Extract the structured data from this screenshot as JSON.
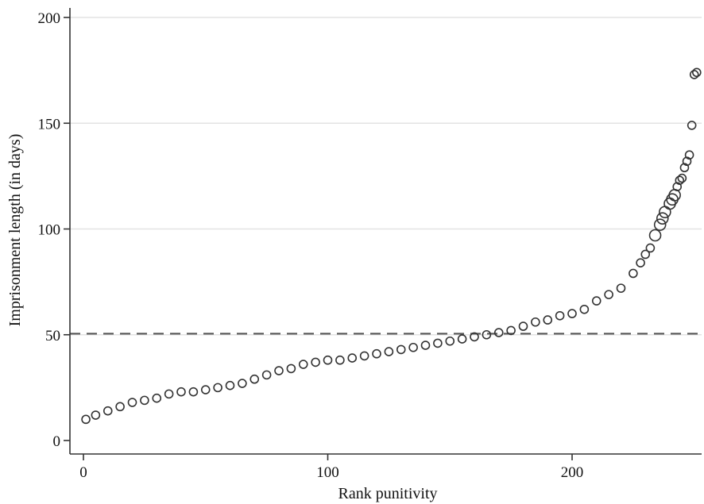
{
  "chart_data": {
    "type": "scatter",
    "title": "",
    "xlabel": "Rank punitivity",
    "ylabel": "Imprisonment length (in days)",
    "xlim": [
      0,
      250
    ],
    "ylim": [
      0,
      200
    ],
    "x_ticks": [
      0,
      100,
      200
    ],
    "y_ticks": [
      0,
      50,
      100,
      150,
      200
    ],
    "grid": "horizontal",
    "reference_line": {
      "y": 50.5,
      "style": "dashed",
      "color": "#555555"
    },
    "marker": "hollow-circle",
    "marker_color": "#333333",
    "series": [
      {
        "x": [
          1,
          5,
          10,
          15,
          20,
          25,
          30,
          35,
          40,
          45,
          50,
          55,
          60,
          65,
          70,
          75,
          80,
          85,
          90,
          95,
          100,
          105,
          110,
          115,
          120,
          125,
          130,
          135,
          140,
          145,
          150,
          155,
          160,
          165,
          170,
          175,
          180,
          185,
          190,
          195,
          200,
          205,
          210,
          215,
          220,
          225,
          228,
          230,
          232,
          234,
          236,
          237,
          238,
          240,
          241,
          242,
          243,
          244,
          245,
          246,
          247,
          248,
          249,
          250,
          251
        ],
        "y": [
          10,
          12,
          14,
          16,
          18,
          19,
          20,
          22,
          23,
          23,
          24,
          25,
          26,
          27,
          29,
          31,
          33,
          34,
          36,
          37,
          38,
          38,
          39,
          40,
          41,
          42,
          43,
          44,
          45,
          46,
          47,
          48,
          49,
          50,
          51,
          52,
          54,
          56,
          57,
          59,
          60,
          62,
          66,
          69,
          72,
          79,
          84,
          88,
          91,
          97,
          102,
          105,
          108,
          112,
          114,
          116,
          120,
          123,
          124,
          129,
          132,
          135,
          149,
          173,
          174
        ]
      }
    ]
  }
}
